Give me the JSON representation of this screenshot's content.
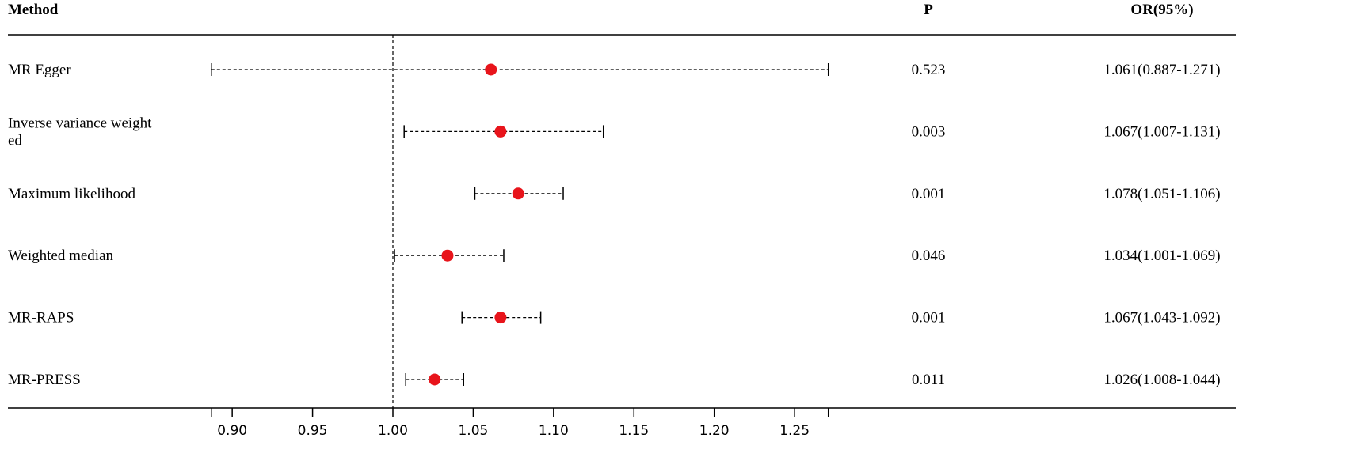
{
  "chart_data": {
    "type": "forest",
    "headers": {
      "method": "Method",
      "p": "P",
      "or": "OR(95%)"
    },
    "reference_line": 1.0,
    "xlim": [
      0.887,
      1.271
    ],
    "xticks": [
      0.9,
      0.95,
      1.0,
      1.05,
      1.1,
      1.15,
      1.2,
      1.25
    ],
    "xtick_labels": [
      "0.90",
      "0.95",
      "1.00",
      "1.05",
      "1.10",
      "1.15",
      "1.20",
      "1.25"
    ],
    "point_color": "#e8141b",
    "rows": [
      {
        "method": [
          "MR Egger"
        ],
        "or": 1.061,
        "lower": 0.887,
        "upper": 1.271,
        "p": "0.523",
        "or_text": "1.061(0.887-1.271)"
      },
      {
        "method": [
          "Inverse variance weight",
          "ed"
        ],
        "or": 1.067,
        "lower": 1.007,
        "upper": 1.131,
        "p": "0.003",
        "or_text": "1.067(1.007-1.131)"
      },
      {
        "method": [
          "Maximum likelihood"
        ],
        "or": 1.078,
        "lower": 1.051,
        "upper": 1.106,
        "p": "0.001",
        "or_text": "1.078(1.051-1.106)"
      },
      {
        "method": [
          "Weighted median"
        ],
        "or": 1.034,
        "lower": 1.001,
        "upper": 1.069,
        "p": "0.046",
        "or_text": "1.034(1.001-1.069)"
      },
      {
        "method": [
          "MR-RAPS"
        ],
        "or": 1.067,
        "lower": 1.043,
        "upper": 1.092,
        "p": "0.001",
        "or_text": "1.067(1.043-1.092)"
      },
      {
        "method": [
          "MR-PRESS"
        ],
        "or": 1.026,
        "lower": 1.008,
        "upper": 1.044,
        "p": "0.011",
        "or_text": "1.026(1.008-1.044)"
      }
    ]
  }
}
